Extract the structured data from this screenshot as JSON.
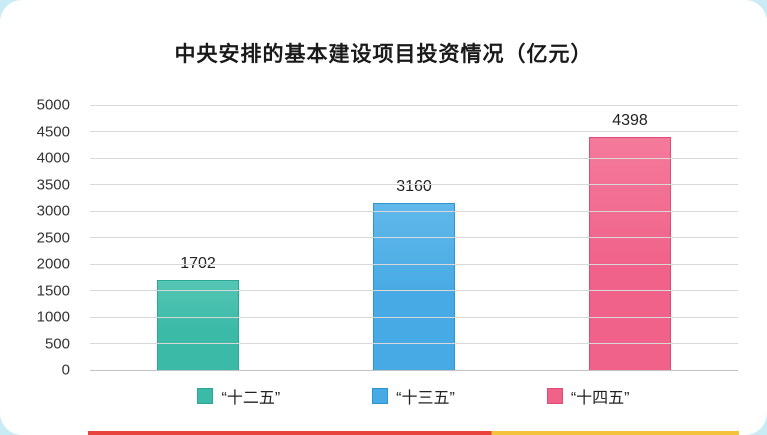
{
  "chart_data": {
    "type": "bar",
    "title": "中央安排的基本建设项目投资情况（亿元）",
    "categories": [
      "“十二五”",
      "“十三五”",
      "“十四五”"
    ],
    "values": [
      1702,
      3160,
      4398
    ],
    "value_labels": [
      "1702",
      "3160",
      "4398"
    ],
    "xlabel": "",
    "ylabel": "",
    "ylim": [
      0,
      5000
    ],
    "ytick_step": 500,
    "grid": true,
    "legend_position": "bottom",
    "colors": {
      "bars": [
        "#3CBAA8",
        "#48AAE4",
        "#F0628A"
      ],
      "bars_light": [
        "#55C6B5",
        "#60B8EA",
        "#F47A9B"
      ],
      "bar_borders": [
        "#2EA593",
        "#2F95D2",
        "#E04A74"
      ],
      "gridline": "#D8D8D8",
      "axis_text": "#333333",
      "title_text": "#1A1A1A"
    }
  },
  "frame": {
    "background_color": "#C8EBF4",
    "card_color": "#FFFFFF",
    "bottom_strip": [
      "#E8433C",
      "#F5C33B"
    ]
  }
}
